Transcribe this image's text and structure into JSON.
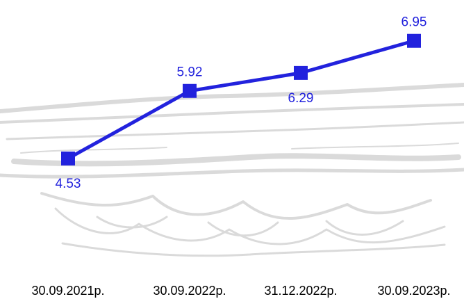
{
  "chart_data": {
    "type": "line",
    "categories": [
      "30.09.2021р.",
      "30.09.2022р.",
      "31.12.2022р.",
      "30.09.2023р."
    ],
    "series": [
      {
        "values": [
          4.53,
          5.92,
          6.29,
          6.95
        ]
      }
    ],
    "data_labels": [
      "4.53",
      "5.92",
      "6.29",
      "6.95"
    ],
    "marker": "square",
    "ylim": [
      1.64,
      7.79
    ],
    "grid": false,
    "legend": "none",
    "colors": {
      "series": "#2222dd",
      "labels": "#2222dd",
      "ticks": "#000000",
      "background_texture": "#d7d7d7"
    }
  }
}
